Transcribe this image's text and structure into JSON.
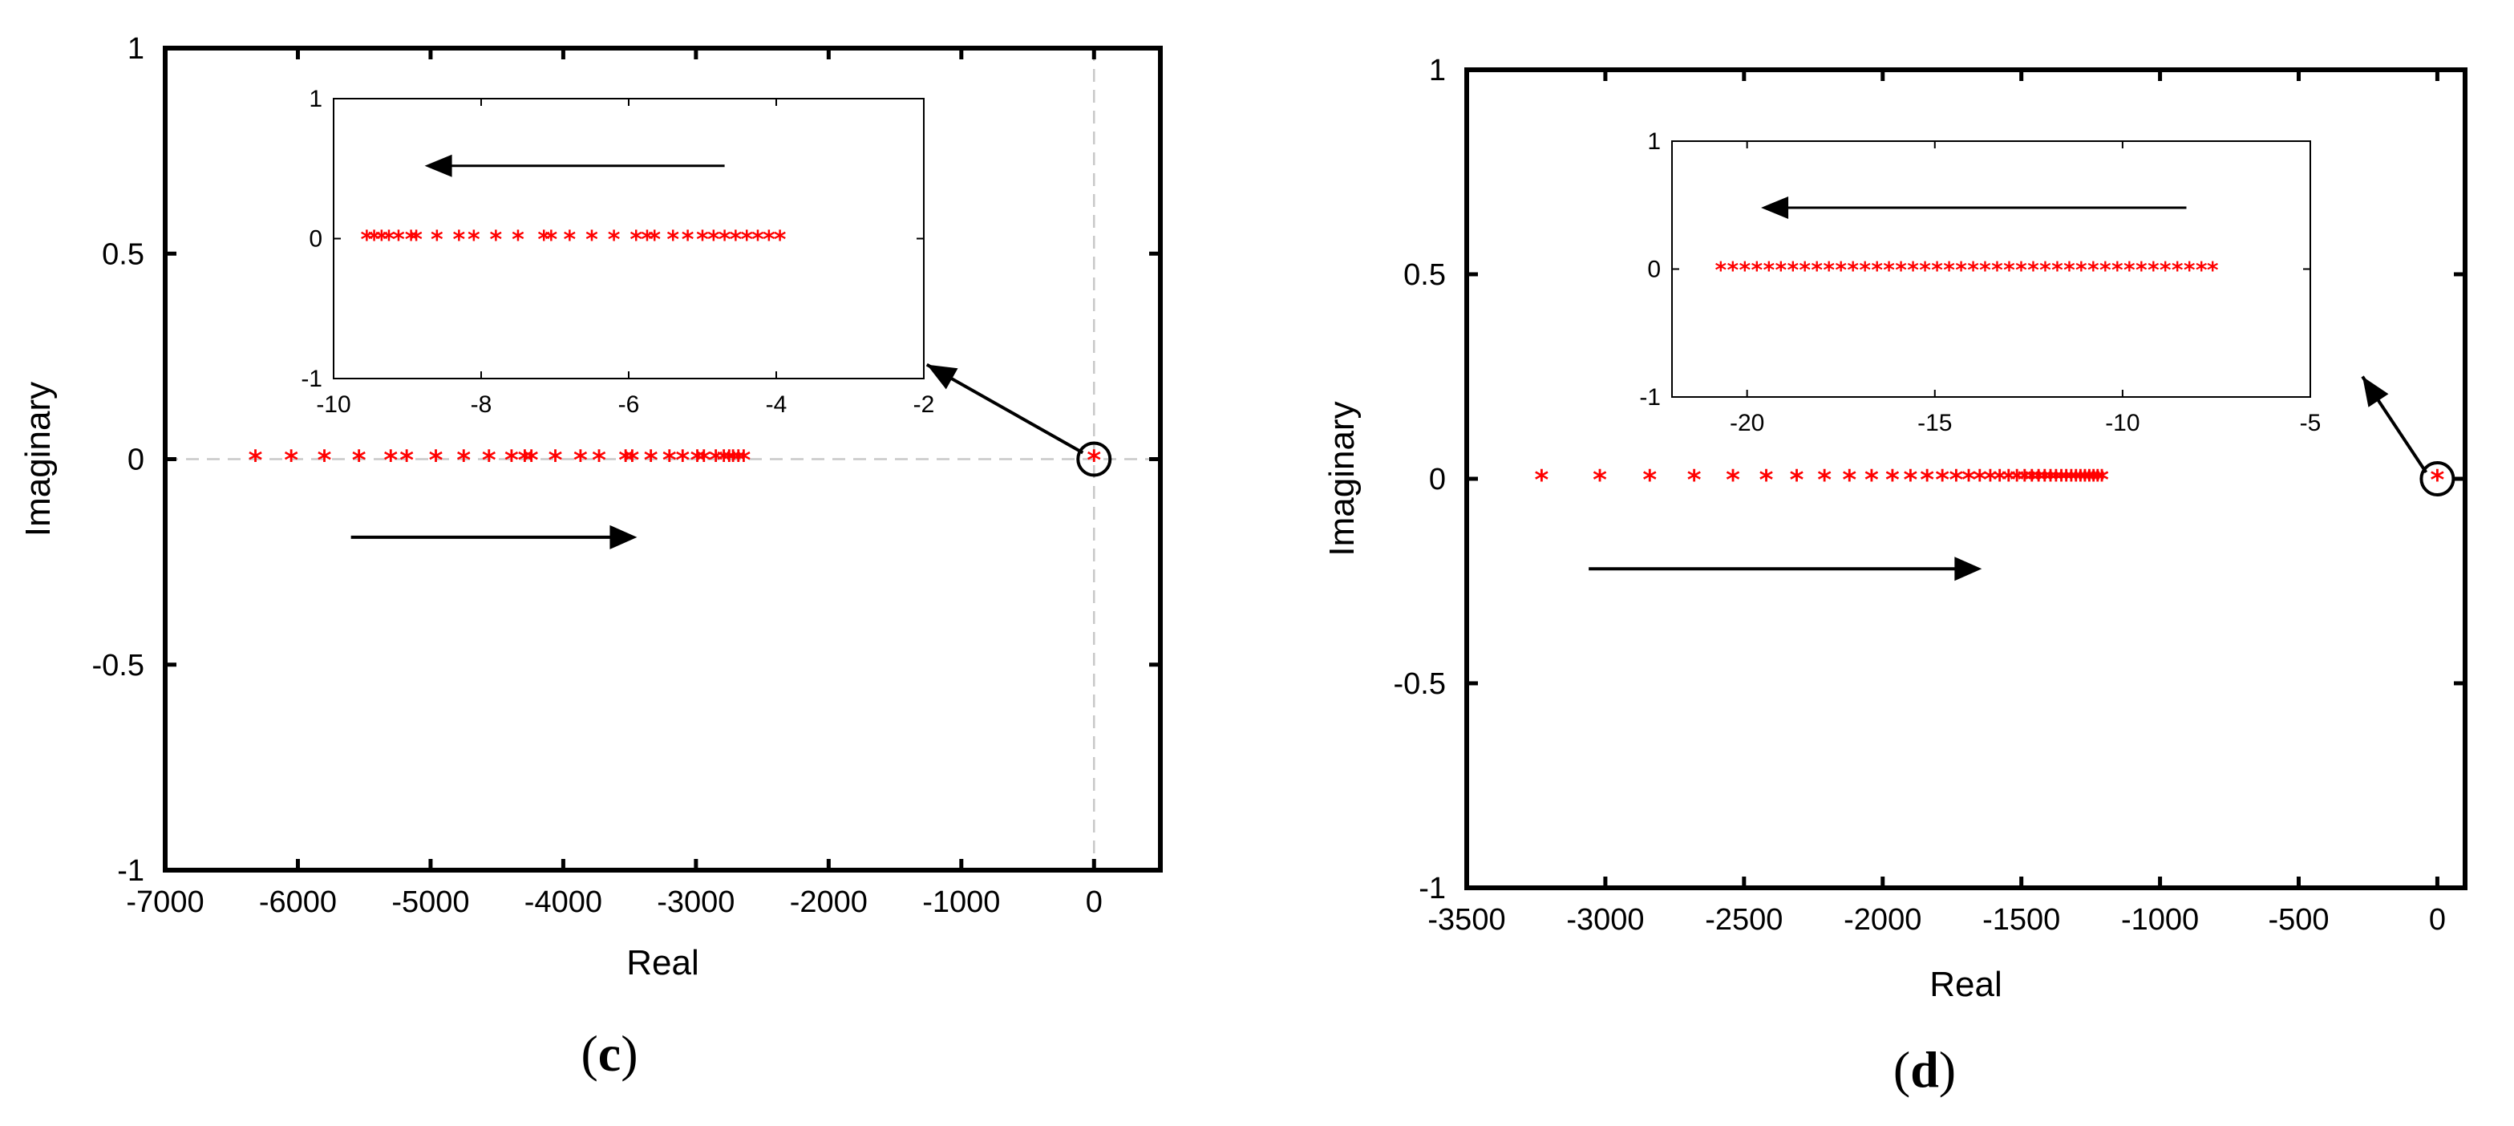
{
  "chart_data": [
    {
      "type": "scatter",
      "panel_label": "c",
      "xlabel": "Real",
      "ylabel": "Imaginary",
      "xlim": [
        -7000,
        500
      ],
      "ylim": [
        -1,
        1
      ],
      "xticks": [
        -7000,
        -6000,
        -5000,
        -4000,
        -3000,
        -2000,
        -1000,
        0
      ],
      "xtick_labels": [
        "-7000",
        "-6000",
        "-5000",
        "-4000",
        "-3000",
        "-2000",
        "-1000",
        "0"
      ],
      "yticks": [
        -1,
        -0.5,
        0,
        0.5,
        1
      ],
      "ytick_labels": [
        "-1",
        "-0.5",
        "0",
        "0.5",
        "1"
      ],
      "marker": "*",
      "marker_color": "#ff0000",
      "dashed_zero_lines": true,
      "series": [
        {
          "x": [
            -6320,
            -6050,
            -5800,
            -5540,
            -5300,
            -5180,
            -4960,
            -4750,
            -4560,
            -4390,
            -4290,
            -4240,
            -4060,
            -3870,
            -3730,
            -3530,
            -3480,
            -3340,
            -3200,
            -3100,
            -2990,
            -2940,
            -2850,
            -2790,
            -2750,
            -2720,
            -2680,
            -2640
          ],
          "y": [
            0,
            0,
            0,
            0,
            0,
            0,
            0,
            0,
            0,
            0,
            0,
            0,
            0,
            0,
            0,
            0,
            0,
            0,
            0,
            0,
            0,
            0,
            0,
            0,
            0,
            0,
            0,
            0
          ]
        },
        {
          "x": [
            0
          ],
          "y": [
            0
          ]
        }
      ],
      "annotations": {
        "main_arrow": {
          "from": [
            -5600,
            -0.19
          ],
          "to": [
            -3480,
            -0.19
          ]
        },
        "circle_center": [
          0,
          0
        ],
        "callout_arrow": {
          "from": [
            0,
            0
          ],
          "to": [
            -1260,
            0.23
          ]
        }
      },
      "inset": {
        "xlim": [
          -10,
          -2
        ],
        "ylim": [
          -1,
          1
        ],
        "xticks": [
          -10,
          -8,
          -6,
          -4,
          -2
        ],
        "xtick_labels": [
          "-10",
          "-8",
          "-6",
          "-4",
          "-2"
        ],
        "yticks": [
          -1,
          0,
          1
        ],
        "ytick_labels": [
          "-1",
          "0",
          "1"
        ],
        "x": [
          -9.55,
          -9.45,
          -9.35,
          -9.25,
          -9.12,
          -8.95,
          -8.88,
          -8.6,
          -8.3,
          -8.1,
          -7.8,
          -7.5,
          -7.15,
          -7.05,
          -6.8,
          -6.5,
          -6.2,
          -5.9,
          -5.75,
          -5.65,
          -5.4,
          -5.2,
          -5.0,
          -4.85,
          -4.7,
          -4.55,
          -4.4,
          -4.25,
          -4.1,
          -3.95
        ],
        "y": [
          0,
          0,
          0,
          0,
          0,
          0,
          0,
          0,
          0,
          0,
          0,
          0,
          0,
          0,
          0,
          0,
          0,
          0,
          0,
          0,
          0,
          0,
          0,
          0,
          0,
          0,
          0,
          0,
          0,
          0
        ],
        "arrow": {
          "from": [
            -4.7,
            0.52
          ],
          "to": [
            -8.7,
            0.52
          ]
        }
      }
    },
    {
      "type": "scatter",
      "panel_label": "d",
      "xlabel": "Real",
      "ylabel": "Imaginary",
      "xlim": [
        -3500,
        100
      ],
      "ylim": [
        -1,
        1
      ],
      "xticks": [
        -3500,
        -3000,
        -2500,
        -2000,
        -1500,
        -1000,
        -500,
        0
      ],
      "xtick_labels": [
        "-3500",
        "-3000",
        "-2500",
        "-2000",
        "-1500",
        "-1000",
        "-500",
        "0"
      ],
      "yticks": [
        -1,
        -0.5,
        0,
        0.5,
        1
      ],
      "ytick_labels": [
        "-1",
        "-0.5",
        "0",
        "0.5",
        "1"
      ],
      "marker": "*",
      "marker_color": "#ff0000",
      "dashed_zero_lines": false,
      "series": [
        {
          "x": [
            -3230,
            -3020,
            -2840,
            -2680,
            -2540,
            -2420,
            -2310,
            -2210,
            -2120,
            -2040,
            -1965,
            -1900,
            -1840,
            -1785,
            -1735,
            -1690,
            -1650,
            -1612,
            -1578,
            -1546,
            -1516,
            -1488,
            -1462,
            -1438,
            -1416,
            -1395,
            -1375,
            -1356,
            -1338,
            -1320,
            -1303,
            -1287,
            -1271,
            -1255,
            -1240,
            -1225,
            -1210
          ],
          "y": [
            0,
            0,
            0,
            0,
            0,
            0,
            0,
            0,
            0,
            0,
            0,
            0,
            0,
            0,
            0,
            0,
            0,
            0,
            0,
            0,
            0,
            0,
            0,
            0,
            0,
            0,
            0,
            0,
            0,
            0,
            0,
            0,
            0,
            0,
            0,
            0,
            0
          ]
        },
        {
          "x": [
            0
          ],
          "y": [
            0
          ]
        }
      ],
      "annotations": {
        "main_arrow": {
          "from": [
            -3060,
            -0.22
          ],
          "to": [
            -1660,
            -0.22
          ]
        },
        "circle_center": [
          0,
          0
        ],
        "callout_arrow": {
          "from": [
            0,
            0
          ],
          "to": [
            -270,
            0.25
          ]
        }
      },
      "inset": {
        "xlim": [
          -22,
          -5
        ],
        "ylim": [
          -1,
          1
        ],
        "xticks": [
          -20,
          -15,
          -10,
          -5
        ],
        "xtick_labels": [
          "-20",
          "-15",
          "-10",
          "-5"
        ],
        "yticks": [
          -1,
          0,
          1
        ],
        "ytick_labels": [
          "-1",
          "0",
          "1"
        ],
        "x": [
          -20.7,
          -20.38,
          -20.06,
          -19.74,
          -19.42,
          -19.1,
          -18.78,
          -18.46,
          -18.14,
          -17.82,
          -17.5,
          -17.18,
          -16.86,
          -16.54,
          -16.22,
          -15.9,
          -15.58,
          -15.26,
          -14.94,
          -14.62,
          -14.3,
          -13.98,
          -13.66,
          -13.34,
          -13.02,
          -12.7,
          -12.38,
          -12.06,
          -11.74,
          -11.42,
          -11.1,
          -10.78,
          -10.46,
          -10.14,
          -9.82,
          -9.5,
          -9.18,
          -8.86,
          -8.54,
          -8.22,
          -7.9,
          -7.6
        ],
        "y": [
          0,
          0,
          0,
          0,
          0,
          0,
          0,
          0,
          0,
          0,
          0,
          0,
          0,
          0,
          0,
          0,
          0,
          0,
          0,
          0,
          0,
          0,
          0,
          0,
          0,
          0,
          0,
          0,
          0,
          0,
          0,
          0,
          0,
          0,
          0,
          0,
          0,
          0,
          0,
          0,
          0,
          0
        ],
        "arrow": {
          "from": [
            -8.3,
            0.48
          ],
          "to": [
            -19.5,
            0.48
          ]
        }
      }
    }
  ]
}
